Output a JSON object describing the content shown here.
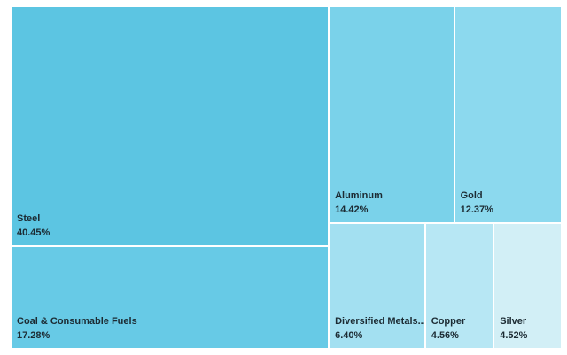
{
  "chart_data": {
    "type": "treemap",
    "items": [
      {
        "name": "Steel",
        "label": "40.45%",
        "value": 40.45,
        "color": "#5cc5e2"
      },
      {
        "name": "Coal & Consumable Fuels",
        "label": "17.28%",
        "value": 17.28,
        "color": "#67cae6"
      },
      {
        "name": "Aluminum",
        "label": "14.42%",
        "value": 14.42,
        "color": "#7ad2ea"
      },
      {
        "name": "Gold",
        "label": "12.37%",
        "value": 12.37,
        "color": "#8cd9ee"
      },
      {
        "name": "Diversified Metals...",
        "label": "6.40%",
        "value": 6.4,
        "color": "#a3e0f1"
      },
      {
        "name": "Copper",
        "label": "4.56%",
        "value": 4.56,
        "color": "#b7e7f4"
      },
      {
        "name": "Silver",
        "label": "4.52%",
        "value": 4.52,
        "color": "#d2eff6"
      }
    ]
  }
}
